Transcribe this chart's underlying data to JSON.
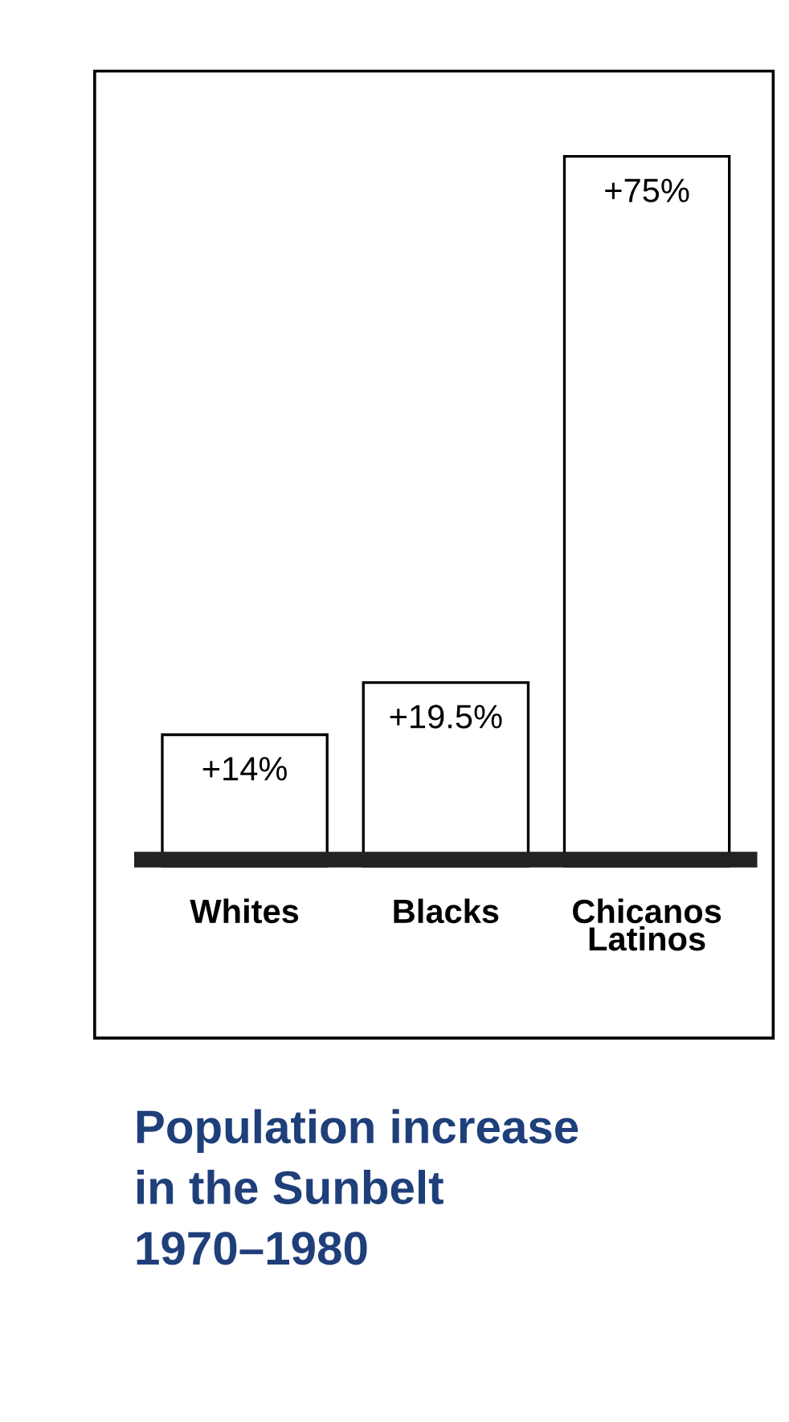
{
  "chart_data": {
    "type": "bar",
    "title": "Population increase\nin the Sunbelt\n1970–1980",
    "categories": [
      "Whites",
      "Blacks",
      "Chicanos\nLatinos"
    ],
    "values": [
      14,
      19.5,
      75
    ],
    "value_labels": [
      "+14%",
      "+19.5%",
      "+75%"
    ],
    "color": "#ffffff",
    "grid": false,
    "legend": false
  }
}
